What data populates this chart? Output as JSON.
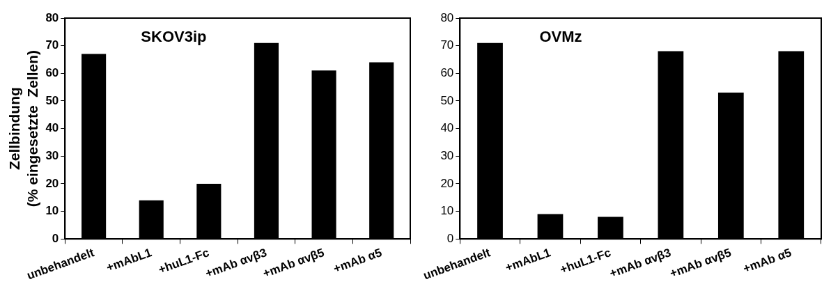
{
  "chart_data": [
    {
      "type": "bar",
      "title": "SKOV3ip",
      "ylabel": "Zellbindung\n(% eingesetzte  Zellen)",
      "categories": [
        "unbehandelt",
        "+mAbL1",
        "+huL1-Fc",
        "+mAb αvβ3",
        "+mAb αvβ5",
        "+mAb α5"
      ],
      "values": [
        67,
        14,
        20,
        71,
        61,
        64
      ],
      "color": "#000000",
      "ylim": [
        0,
        80
      ],
      "yticks": [
        0,
        10,
        20,
        30,
        40,
        50,
        60,
        70,
        80
      ],
      "grid": false,
      "legend": false
    },
    {
      "type": "bar",
      "title": "OVMz",
      "categories": [
        "unbehandelt",
        "+mAbL1",
        "+huL1-Fc",
        "+mAb αvβ3",
        "+mAb αvβ5",
        "+mAb α5"
      ],
      "values": [
        71,
        9,
        8,
        68,
        53,
        68
      ],
      "color": "#000000",
      "ylim": [
        0,
        80
      ],
      "yticks": [
        0,
        10,
        20,
        30,
        40,
        50,
        60,
        70,
        80
      ],
      "grid": false,
      "legend": false
    }
  ]
}
